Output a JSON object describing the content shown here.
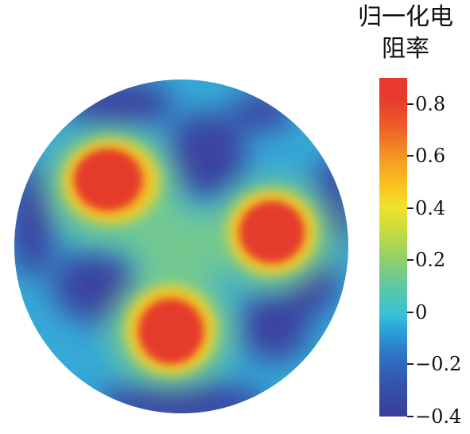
{
  "chart_data": {
    "type": "heatmap",
    "title": "",
    "colorbar": {
      "label_line1": "归一化电",
      "label_line2": "阻率",
      "range": [
        -0.4,
        0.9
      ],
      "ticks": [
        0.8,
        0.6,
        0.4,
        0.2,
        0,
        -0.2,
        -0.4
      ],
      "tick_labels": [
        "0.8",
        "0.6",
        "0.4",
        "0.2",
        "0",
        "−0.2",
        "−0.4"
      ],
      "colors": {
        "low": "#3a3f97",
        "mid_low": "#29a6d8",
        "mid": "#8ecf6f",
        "mid_high": "#f1e22b",
        "high": "#e53a2c"
      }
    },
    "domain_shape": "circle",
    "anomalies": [
      {
        "name": "upper-left",
        "peak": 0.9
      },
      {
        "name": "right",
        "peak": 0.9
      },
      {
        "name": "bottom",
        "peak": 0.9
      }
    ],
    "background_level": -0.1
  }
}
